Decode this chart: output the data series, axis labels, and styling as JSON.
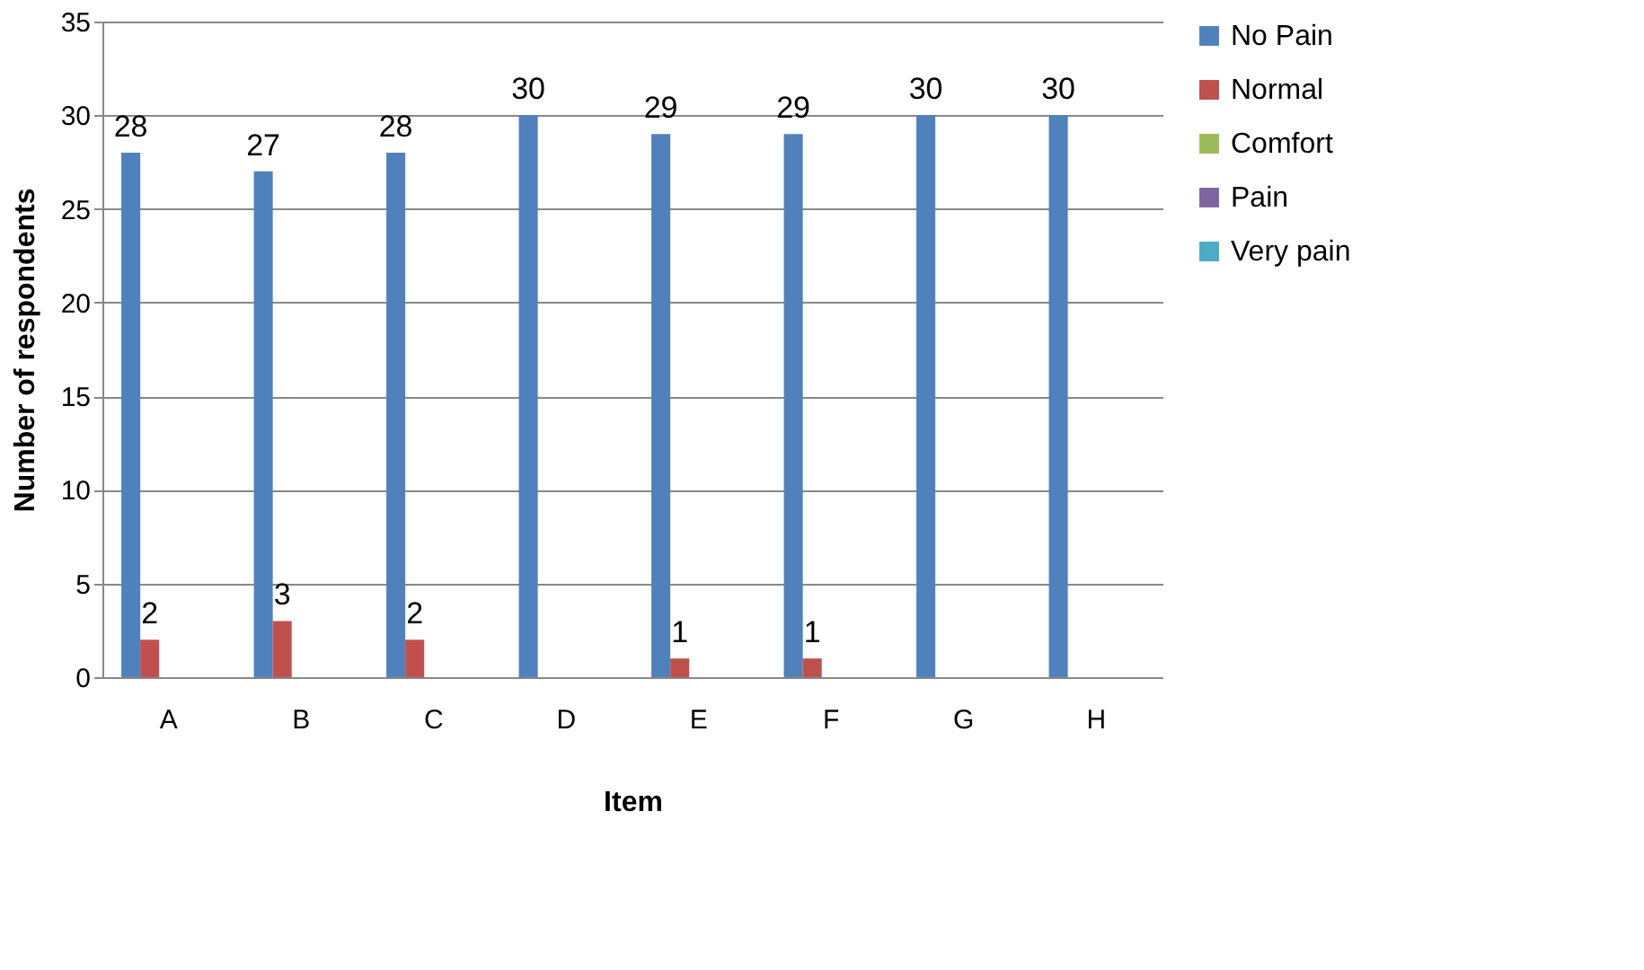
{
  "chart_data": {
    "type": "bar",
    "xlabel": "Item",
    "ylabel": "Number of respondents",
    "categories": [
      "A",
      "B",
      "C",
      "D",
      "E",
      "F",
      "G",
      "H"
    ],
    "series": [
      {
        "name": "No Pain",
        "color": "#4f81bd",
        "values": [
          28,
          27,
          28,
          30,
          29,
          29,
          30,
          30
        ],
        "value_labels": [
          "28",
          "27",
          "28",
          "30",
          "29",
          "29",
          "30",
          "30"
        ]
      },
      {
        "name": "Normal",
        "color": "#c0504d",
        "values": [
          2,
          3,
          2,
          0,
          1,
          1,
          0,
          0
        ],
        "value_labels": [
          "2",
          "3",
          "2",
          null,
          "1",
          "1",
          null,
          null
        ]
      },
      {
        "name": "Comfort",
        "color": "#9bbb59",
        "values": [
          0,
          0,
          0,
          0,
          0,
          0,
          0,
          0
        ]
      },
      {
        "name": "Pain",
        "color": "#8064a2",
        "values": [
          0,
          0,
          0,
          0,
          0,
          0,
          0,
          0
        ]
      },
      {
        "name": "Very pain",
        "color": "#4bacc6",
        "values": [
          0,
          0,
          0,
          0,
          0,
          0,
          0,
          0
        ]
      }
    ],
    "ylim": [
      0,
      35
    ],
    "yticks": [
      0,
      5,
      10,
      15,
      20,
      25,
      30,
      35
    ],
    "grid": "y",
    "legend": "right"
  }
}
